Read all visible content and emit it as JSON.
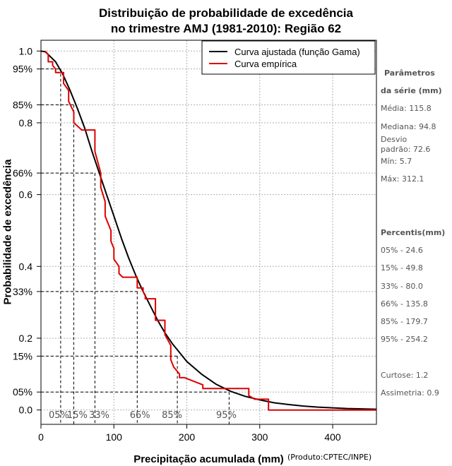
{
  "chart_data": {
    "type": "line",
    "title": [
      "Distribuição de probabilidade de excedência",
      "no trimestre AMJ (1981-2010): Região 62"
    ],
    "xlabel": "Precipitação acumulada (mm)",
    "ylabel": "Probabilidade de excedência",
    "xlim": [
      0,
      460
    ],
    "ylim": [
      -0.04,
      1.03
    ],
    "x_ticks": [
      0,
      100,
      200,
      300,
      400
    ],
    "y_ticks": [
      {
        "value": 1.0,
        "label": "1.0"
      },
      {
        "value": 0.95,
        "label": "95%"
      },
      {
        "value": 0.85,
        "label": "85%"
      },
      {
        "value": 0.8,
        "label": "0.8"
      },
      {
        "value": 0.66,
        "label": "66%"
      },
      {
        "value": 0.6,
        "label": "0.6"
      },
      {
        "value": 0.4,
        "label": "0.4"
      },
      {
        "value": 0.33,
        "label": "33%"
      },
      {
        "value": 0.2,
        "label": "0.2"
      },
      {
        "value": 0.15,
        "label": "15%"
      },
      {
        "value": 0.05,
        "label": "05%"
      },
      {
        "value": 0.0,
        "label": "0.0"
      }
    ],
    "grid": true,
    "legend_position": "top-right",
    "series": [
      {
        "name": "Curva ajustada (função Gama)",
        "color": "#000000",
        "style": "smooth",
        "x": [
          0,
          5.7,
          10,
          20,
          30,
          40,
          50,
          60,
          70,
          80,
          90,
          100,
          110,
          120,
          130,
          140,
          150,
          160,
          170,
          180,
          190,
          200,
          220,
          240,
          260,
          280,
          300,
          320,
          340,
          360,
          380,
          400,
          420,
          440,
          460
        ],
        "y": [
          1.0,
          0.998,
          0.99,
          0.97,
          0.935,
          0.89,
          0.84,
          0.785,
          0.72,
          0.66,
          0.6,
          0.54,
          0.48,
          0.425,
          0.375,
          0.33,
          0.29,
          0.25,
          0.215,
          0.185,
          0.16,
          0.135,
          0.1,
          0.072,
          0.052,
          0.038,
          0.028,
          0.02,
          0.015,
          0.011,
          0.008,
          0.006,
          0.004,
          0.003,
          0.002
        ]
      },
      {
        "name": "Curva empírica",
        "color": "#dd0000",
        "style": "step",
        "x": [
          5.7,
          10,
          10,
          16,
          16,
          20,
          20,
          31,
          31,
          38,
          38,
          45,
          45,
          56,
          56,
          74,
          74,
          82,
          82,
          88,
          88,
          96,
          96,
          100,
          100,
          107,
          107,
          112,
          112,
          132,
          132,
          140,
          140,
          143,
          143,
          157,
          157,
          170,
          170,
          178,
          178,
          182,
          182,
          190,
          190,
          197,
          197,
          222,
          222,
          232,
          232,
          285,
          285,
          293,
          293,
          312,
          312,
          460
        ],
        "y": [
          1.0,
          0.99,
          0.97,
          0.97,
          0.96,
          0.95,
          0.94,
          0.94,
          0.91,
          0.89,
          0.86,
          0.83,
          0.8,
          0.78,
          0.78,
          0.78,
          0.72,
          0.66,
          0.62,
          0.58,
          0.54,
          0.5,
          0.47,
          0.45,
          0.42,
          0.4,
          0.38,
          0.37,
          0.37,
          0.37,
          0.34,
          0.34,
          0.33,
          0.32,
          0.31,
          0.31,
          0.25,
          0.25,
          0.21,
          0.18,
          0.14,
          0.12,
          0.12,
          0.1,
          0.09,
          0.09,
          0.09,
          0.07,
          0.06,
          0.06,
          0.06,
          0.06,
          0.04,
          0.03,
          0.03,
          0.03,
          0.0,
          0.0
        ]
      }
    ],
    "percentile_markers": [
      {
        "label": "05%",
        "x": 24.6,
        "y": 0.05
      },
      {
        "label": "15%",
        "x": 49.8,
        "y": 0.15
      },
      {
        "label": "33%",
        "x": 80.0,
        "y": 0.33
      },
      {
        "label": "66%",
        "x": 135.8,
        "y": 0.66
      },
      {
        "label": "85%",
        "x": 179.7,
        "y": 0.85
      },
      {
        "label": "95%",
        "x": 254.2,
        "y": 0.95
      }
    ],
    "marker_line_points": [
      {
        "x": 27,
        "y": 0.95
      },
      {
        "x": 45,
        "y": 0.85
      },
      {
        "x": 74,
        "y": 0.66
      },
      {
        "x": 132,
        "y": 0.33
      },
      {
        "x": 187,
        "y": 0.15
      },
      {
        "x": 258,
        "y": 0.05
      }
    ]
  },
  "sidebar": {
    "params_title_1": "Parâmetros",
    "params_title_2": "da série (mm)",
    "media": "Média: 115.8",
    "mediana": "Mediana: 94.8",
    "desvio_1": "Desvio",
    "desvio_2": "padrão: 72.6",
    "min": "Mín: 5.7",
    "max": "Máx: 312.1",
    "percentis_title": "Percentis(mm)",
    "percentis": [
      "05% - 24.6",
      "15% - 49.8",
      "33% - 80.0",
      "66% - 135.8",
      "85% - 179.7",
      "95% - 254.2"
    ],
    "curtose": "Curtose: 1.2",
    "assimetria": "Assimetria: 0.9"
  },
  "credit": "(Produto:CPTEC/INPE)"
}
